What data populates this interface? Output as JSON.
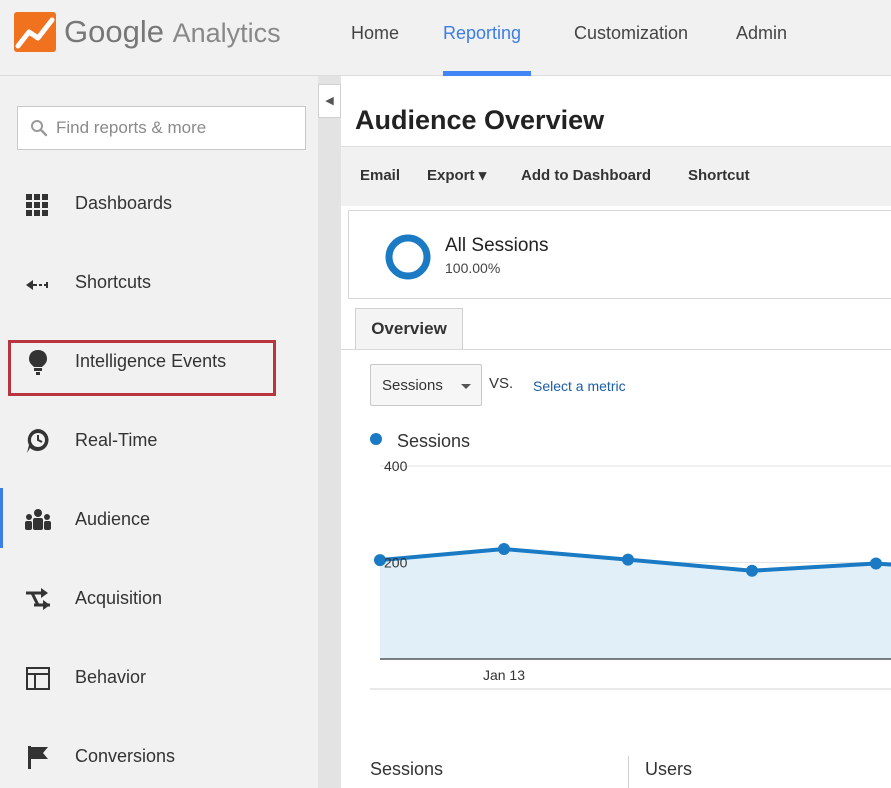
{
  "header": {
    "brand_google": "Google",
    "brand_product": "Analytics",
    "nav": [
      "Home",
      "Reporting",
      "Customization",
      "Admin"
    ],
    "active_nav": "Reporting",
    "accent_color": "#4285f4"
  },
  "sidebar": {
    "collapse_icon": "chevron-left-icon",
    "search": {
      "placeholder": "Find reports & more",
      "value": ""
    },
    "items": [
      {
        "label": "Dashboards",
        "icon": "grid-icon"
      },
      {
        "label": "Shortcuts",
        "icon": "shortcut-arrow-icon"
      },
      {
        "label": "Intelligence Events",
        "icon": "lightbulb-icon",
        "highlighted": true,
        "highlight_color": "#b8343e"
      },
      {
        "label": "Real-Time",
        "icon": "clock-icon"
      },
      {
        "label": "Audience",
        "icon": "people-icon",
        "active": true
      },
      {
        "label": "Acquisition",
        "icon": "arrows-icon"
      },
      {
        "label": "Behavior",
        "icon": "layout-icon"
      },
      {
        "label": "Conversions",
        "icon": "flag-icon"
      }
    ]
  },
  "main": {
    "title": "Audience Overview",
    "actions": [
      "Email",
      "Export",
      "Add to Dashboard",
      "Shortcut"
    ],
    "export_caret": "▾",
    "segment": {
      "name": "All Sessions",
      "percent": "100.00%",
      "color": "#1a7ac4"
    },
    "tabs": [
      "Overview"
    ],
    "metric_select": "Sessions",
    "vs_label": "VS.",
    "select_metric_link": "Select a metric",
    "legend": "Sessions",
    "stats": [
      "Sessions",
      "Users"
    ]
  },
  "chart_data": {
    "type": "area",
    "series": [
      {
        "name": "Sessions",
        "color": "#1a7ac4",
        "fill": "#e1eff8"
      }
    ],
    "y_ticks": [
      "400",
      "200"
    ],
    "y_tick_values": [
      400,
      200
    ],
    "ylim": [
      0,
      400
    ],
    "x_labels": [
      "Jan 13"
    ],
    "x_label_index": 1,
    "values": [
      205,
      228,
      206,
      183,
      198,
      180
    ]
  }
}
